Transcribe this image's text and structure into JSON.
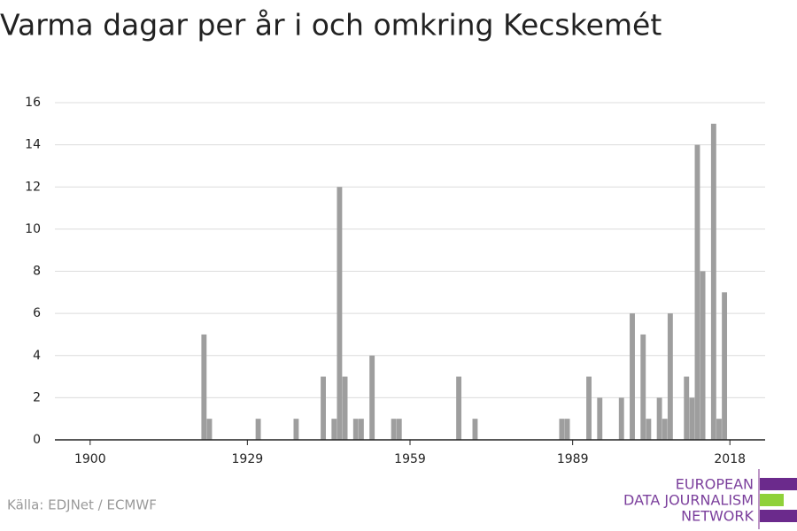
{
  "chart_data": {
    "type": "bar",
    "title": "Varma dagar per år i och omkring Kecskemét",
    "source": "Källa: EDJNet / ECMWF",
    "logo": [
      "EUROPEAN",
      "DATA JOURNALISM",
      "NETWORK"
    ],
    "x": [
      1921,
      1922,
      1931,
      1938,
      1943,
      1945,
      1946,
      1947,
      1949,
      1950,
      1952,
      1956,
      1957,
      1968,
      1971,
      1987,
      1988,
      1992,
      1994,
      1998,
      2000,
      2002,
      2003,
      2005,
      2006,
      2007,
      2010,
      2011,
      2012,
      2013,
      2015,
      2016,
      2017
    ],
    "values": [
      5,
      1,
      1,
      1,
      3,
      1,
      12,
      3,
      1,
      1,
      4,
      1,
      1,
      3,
      1,
      1,
      1,
      3,
      2,
      2,
      6,
      5,
      1,
      2,
      1,
      6,
      3,
      2,
      14,
      8,
      15,
      1,
      7
    ],
    "color": "#9e9e9e",
    "xlim": [
      1893.5,
      2024.5
    ],
    "xticks": [
      1900,
      1929,
      1959,
      1989,
      2018
    ],
    "ylim": [
      0,
      16
    ],
    "yticks": [
      0,
      2,
      4,
      6,
      8,
      10,
      12,
      14,
      16
    ],
    "grid": true
  }
}
